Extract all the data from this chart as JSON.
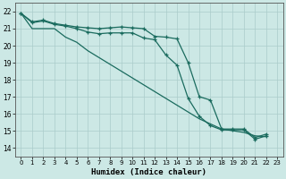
{
  "xlabel": "Humidex (Indice chaleur)",
  "background_color": "#cce8e5",
  "grid_color": "#aaccca",
  "line_color": "#1a6b5e",
  "xlim": [
    -0.5,
    23.5
  ],
  "ylim": [
    13.5,
    22.5
  ],
  "yticks": [
    14,
    15,
    16,
    17,
    18,
    19,
    20,
    21,
    22
  ],
  "xticks": [
    0,
    1,
    2,
    3,
    4,
    5,
    6,
    7,
    8,
    9,
    10,
    11,
    12,
    13,
    14,
    15,
    16,
    17,
    18,
    19,
    20,
    21,
    22,
    23
  ],
  "series": [
    [
      21.9,
      21.4,
      21.5,
      21.3,
      21.2,
      21.1,
      21.05,
      21.0,
      21.05,
      21.1,
      21.05,
      21.0,
      20.55,
      20.5,
      20.4,
      19.0,
      17.0,
      16.8,
      15.1,
      15.1,
      15.1,
      14.6,
      14.8
    ],
    [
      21.9,
      21.35,
      21.45,
      21.25,
      21.15,
      21.0,
      20.8,
      20.7,
      20.75,
      20.75,
      20.75,
      20.45,
      20.35,
      19.45,
      18.85,
      16.9,
      15.85,
      15.3,
      15.05,
      15.05,
      15.05,
      14.5,
      14.7
    ],
    [
      21.9,
      21.0,
      21.0,
      21.0,
      20.5,
      20.2,
      19.7,
      19.3,
      18.9,
      18.5,
      18.1,
      17.7,
      17.3,
      16.9,
      16.5,
      16.1,
      15.7,
      15.4,
      15.1,
      15.0,
      14.9,
      14.7,
      14.65
    ]
  ],
  "markers": [
    true,
    true,
    false
  ]
}
